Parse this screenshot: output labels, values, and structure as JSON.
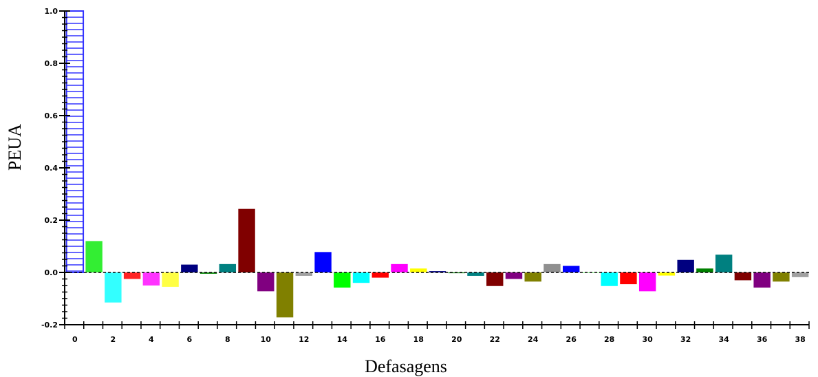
{
  "chart_data": {
    "type": "bar",
    "xlabel": "Defasagens",
    "ylabel": "PEUA",
    "ylim": [
      -0.2,
      1.0
    ],
    "xlim": [
      0,
      39
    ],
    "yticks": [
      "-0.2",
      "0.0",
      "0.2",
      "0.4",
      "0.6",
      "0.8",
      "1.0"
    ],
    "yticks_values": [
      -0.2,
      0.0,
      0.2,
      0.4,
      0.6,
      0.8,
      1.0
    ],
    "xticks": [
      "0",
      "2",
      "4",
      "6",
      "8",
      "10",
      "12",
      "14",
      "16",
      "18",
      "20",
      "22",
      "24",
      "26",
      "28",
      "30",
      "32",
      "34",
      "36",
      "38"
    ],
    "xticks_values": [
      0,
      2,
      4,
      6,
      8,
      10,
      12,
      14,
      16,
      18,
      20,
      22,
      24,
      26,
      28,
      30,
      32,
      34,
      36,
      38
    ],
    "zero_line": "dashed",
    "grid": false,
    "lags": [
      0,
      1,
      2,
      3,
      4,
      5,
      6,
      7,
      8,
      9,
      10,
      11,
      12,
      13,
      14,
      15,
      16,
      17,
      18,
      19,
      20,
      21,
      22,
      23,
      24,
      25,
      26,
      27,
      28,
      29,
      30,
      31,
      32,
      33,
      34,
      35,
      36,
      37,
      38
    ],
    "values": [
      1.0,
      0.12,
      -0.115,
      -0.025,
      -0.05,
      -0.055,
      0.03,
      -0.005,
      0.032,
      0.243,
      -0.072,
      -0.172,
      -0.013,
      0.078,
      -0.058,
      -0.04,
      -0.02,
      0.032,
      0.015,
      0.005,
      -0.003,
      -0.013,
      -0.052,
      -0.025,
      -0.035,
      0.032,
      0.025,
      0.0,
      -0.052,
      -0.045,
      -0.072,
      -0.012,
      0.048,
      0.015,
      0.068,
      -0.03,
      -0.058,
      -0.035,
      -0.018
    ],
    "colors": [
      "#3333ff",
      "#33ee33",
      "#33ffff",
      "#ff2222",
      "#ff33ff",
      "#ffff44",
      "#000080",
      "#008000",
      "#008080",
      "#800000",
      "#800080",
      "#808000",
      "#a0a0a0",
      "#0000ff",
      "#00ff00",
      "#00ffff",
      "#ff0000",
      "#ff00ff",
      "#ffff00",
      "#000080",
      "#008000",
      "#008080",
      "#800000",
      "#800080",
      "#808000",
      "#909090",
      "#0000ff",
      "#00ff00",
      "#00ffff",
      "#ff0000",
      "#ff00ff",
      "#ffff00",
      "#000080",
      "#008000",
      "#008080",
      "#800000",
      "#800080",
      "#808000",
      "#a0a0a0"
    ],
    "first_bar_style": "hatched-outline"
  }
}
